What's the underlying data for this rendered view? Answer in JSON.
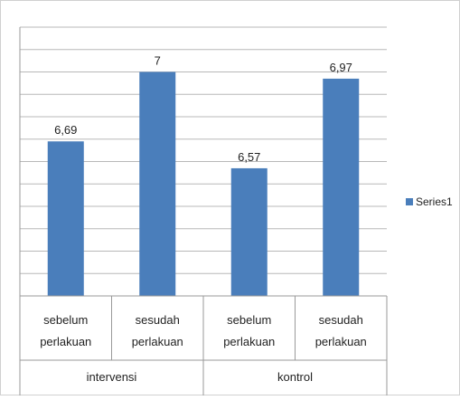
{
  "chart_data": {
    "type": "bar",
    "categories": [
      "sebelum perlakuan",
      "sesudah perlakuan",
      "sebelum perlakuan",
      "sesudah perlakuan"
    ],
    "category_lines": [
      [
        "sebelum",
        "perlakuan"
      ],
      [
        "sesudah",
        "perlakuan"
      ],
      [
        "sebelum",
        "perlakuan"
      ],
      [
        "sesudah",
        "perlakuan"
      ]
    ],
    "groups": [
      {
        "label": "intervensi",
        "categories": [
          0,
          1
        ]
      },
      {
        "label": "kontrol",
        "categories": [
          2,
          3
        ]
      }
    ],
    "series": [
      {
        "name": "Series1",
        "values": [
          6.69,
          7,
          6.57,
          6.97
        ],
        "color": "#4a7ebb"
      }
    ],
    "data_labels": [
      "6,69",
      "7",
      "6,57",
      "6,97"
    ],
    "ylim": [
      6,
      7.2
    ],
    "grid": true,
    "legend_position": "right",
    "title": "",
    "xlabel": "",
    "ylabel": ""
  }
}
